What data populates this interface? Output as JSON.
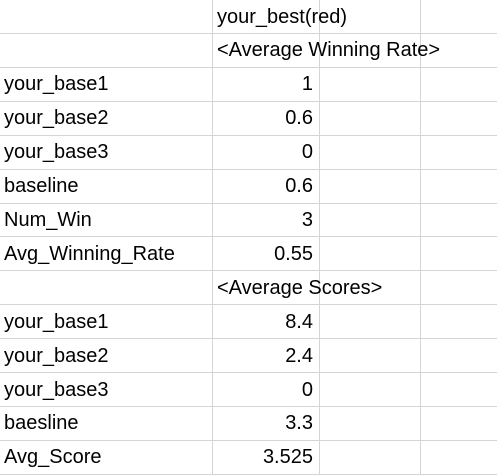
{
  "sheet": {
    "header": "your_best(red)",
    "sections": [
      {
        "title": "<Average Winning Rate>",
        "rows": [
          {
            "label": "your_base1",
            "value": "1"
          },
          {
            "label": "your_base2",
            "value": "0.6"
          },
          {
            "label": "your_base3",
            "value": "0"
          },
          {
            "label": "baseline",
            "value": "0.6"
          },
          {
            "label": "Num_Win",
            "value": "3"
          },
          {
            "label": "Avg_Winning_Rate",
            "value": "0.55"
          }
        ]
      },
      {
        "title": "<Average Scores>",
        "rows": [
          {
            "label": "your_base1",
            "value": "8.4"
          },
          {
            "label": "your_base2",
            "value": "2.4"
          },
          {
            "label": "your_base3",
            "value": "0"
          },
          {
            "label": "baesline",
            "value": "3.3"
          },
          {
            "label": "Avg_Score",
            "value": "3.525"
          }
        ]
      }
    ]
  }
}
